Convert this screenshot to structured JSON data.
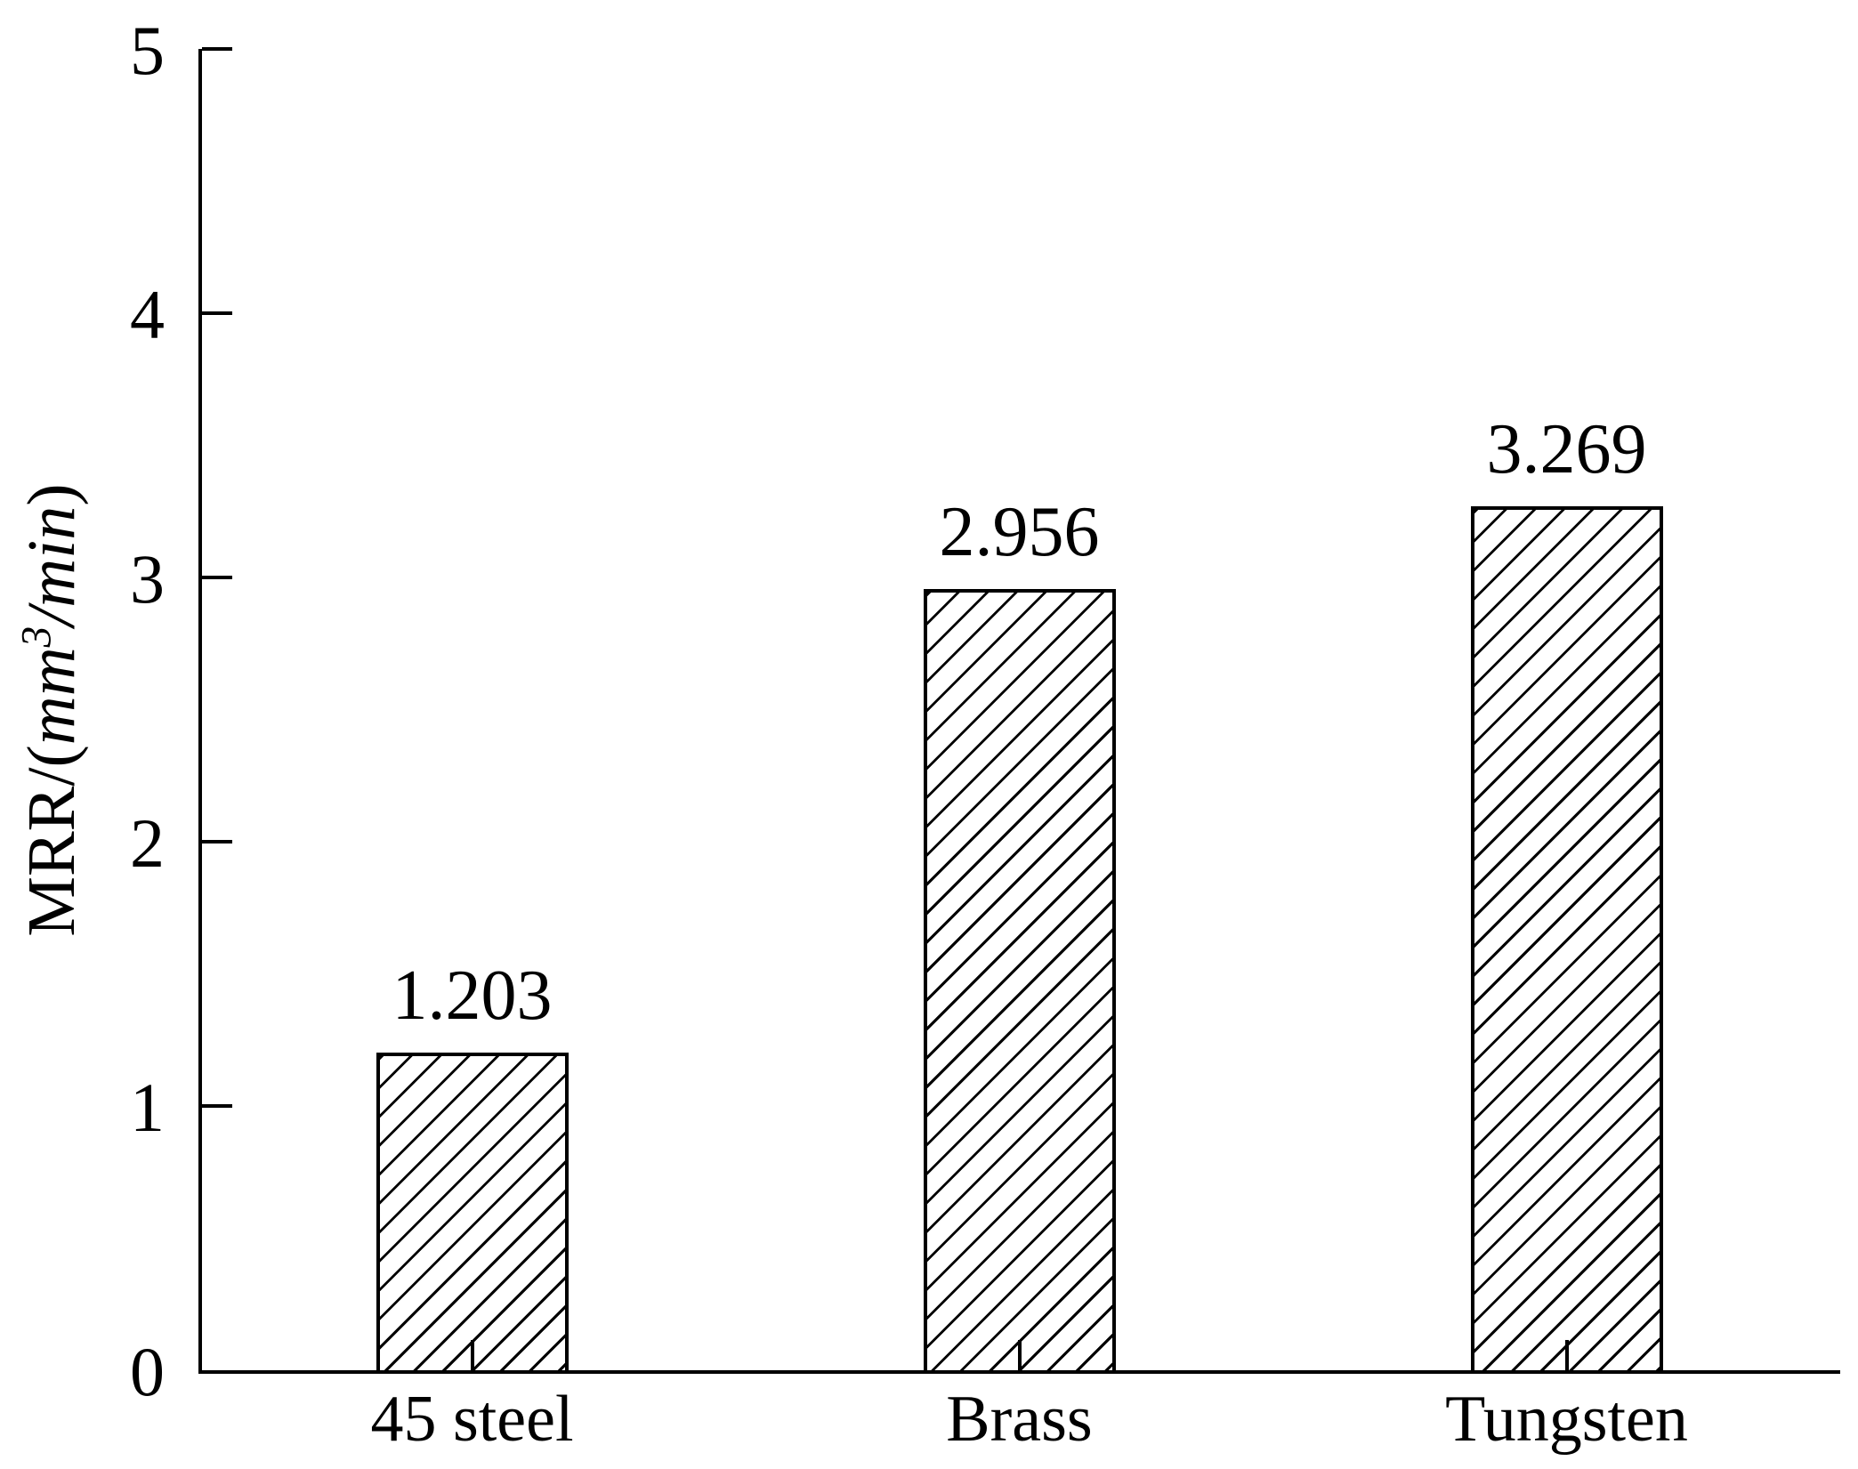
{
  "figure": {
    "background": "#ffffff",
    "ink_color": "#000000"
  },
  "chart_data": {
    "type": "bar",
    "title": "",
    "categories": [
      "45 steel",
      "Brass",
      "Tungsten"
    ],
    "values": [
      1.203,
      2.956,
      3.269
    ],
    "value_labels": [
      "1.203",
      "2.956",
      "3.269"
    ],
    "ylabel": "MRR/(mm³/min)",
    "xlabel": "",
    "ylim": [
      0,
      5
    ],
    "yticks": [
      0,
      1,
      2,
      3,
      4,
      5
    ],
    "ytick_labels": [
      "0",
      "1",
      "2",
      "3",
      "4",
      "5"
    ],
    "grid": false,
    "legend": null,
    "bar_style": "white fill with black diagonal hatch (/)",
    "bar_outline_color": "#000000",
    "ticks_direction": "inward"
  },
  "ylabel_parts": {
    "prefix": "MRR/(",
    "unit_num": "mm",
    "unit_sup": "3",
    "unit_denom": "/min",
    "close": ")"
  }
}
